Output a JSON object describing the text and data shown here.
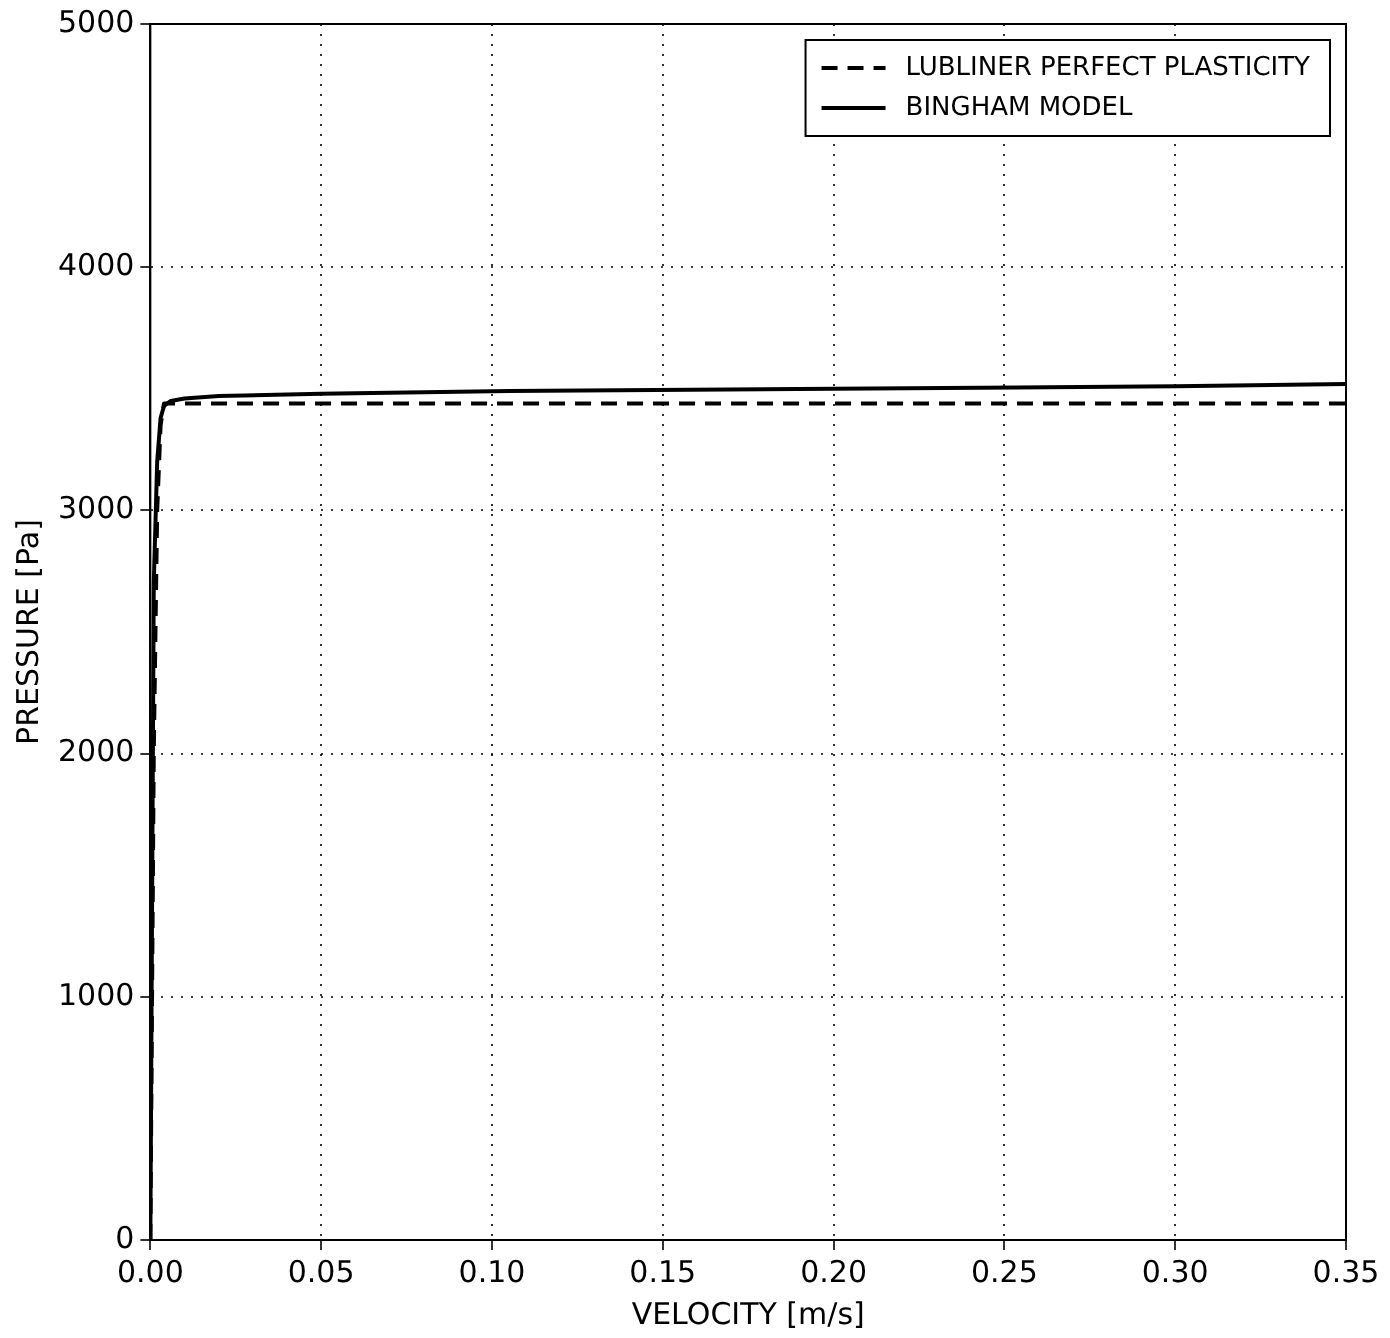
{
  "chart_data": {
    "type": "line",
    "xlabel": "VELOCITY [m/s]",
    "ylabel": "PRESSURE [Pa]",
    "xlim": [
      0,
      0.35
    ],
    "xticks": [
      {
        "value": 0,
        "label": "0.00"
      },
      {
        "value": 0.05,
        "label": "0.05"
      },
      {
        "value": 0.1,
        "label": "0.10"
      },
      {
        "value": 0.15,
        "label": "0.15"
      },
      {
        "value": 0.2,
        "label": "0.20"
      },
      {
        "value": 0.25,
        "label": "0.25"
      },
      {
        "value": 0.3,
        "label": "0.30"
      },
      {
        "value": 0.35,
        "label": "0.35"
      }
    ],
    "ylim": [
      0,
      5000
    ],
    "yticks": [
      0,
      1000,
      2000,
      3000,
      4000,
      5000
    ],
    "grid": true,
    "legend": "top right",
    "marker": "none",
    "series": [
      {
        "name": "LUBLINER PERFECT PLASTICITY",
        "color": "#000000",
        "line_style": "dashed",
        "x": [
          0,
          0.001,
          0.002,
          0.003,
          0.004,
          0.1,
          0.2,
          0.35
        ],
        "values": [
          0,
          2000,
          3000,
          3350,
          3440,
          3440,
          3440,
          3440
        ]
      },
      {
        "name": "BINGHAM MODEL",
        "color": "#000000",
        "line_style": "solid",
        "x": [
          0,
          0.001,
          0.002,
          0.003,
          0.004,
          0.006,
          0.01,
          0.02,
          0.05,
          0.1,
          0.2,
          0.3,
          0.35
        ],
        "values": [
          0,
          2700,
          3200,
          3380,
          3430,
          3450,
          3460,
          3470,
          3480,
          3490,
          3500,
          3510,
          3520
        ]
      }
    ]
  }
}
